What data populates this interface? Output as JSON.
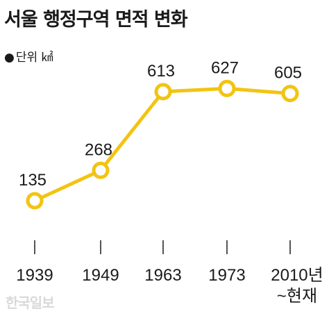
{
  "header": {
    "title": "서울 행정구역 면적 변화",
    "unit_label": "단위 ㎢"
  },
  "watermark": "한국일보",
  "colors": {
    "line": "#f2c412",
    "marker_fill": "#ffffff",
    "text": "#1a1a1a"
  },
  "chart_data": {
    "type": "line",
    "title": "서울 행정구역 면적 변화",
    "unit": "단위 ㎢",
    "categories": [
      "1939",
      "1949",
      "1963",
      "1973",
      "2010년 ~현재"
    ],
    "tick_lines": [
      [
        "1939"
      ],
      [
        "1949"
      ],
      [
        "1963"
      ],
      [
        "1973"
      ],
      [
        "2010년",
        "~현재"
      ]
    ],
    "series": [
      {
        "values": [
          135,
          268,
          613,
          627,
          605
        ]
      }
    ],
    "data_labels": [
      "135",
      "268",
      "613",
      "627",
      "605"
    ],
    "ylim": [
      0,
      700
    ],
    "grid": false,
    "legend": "none"
  }
}
